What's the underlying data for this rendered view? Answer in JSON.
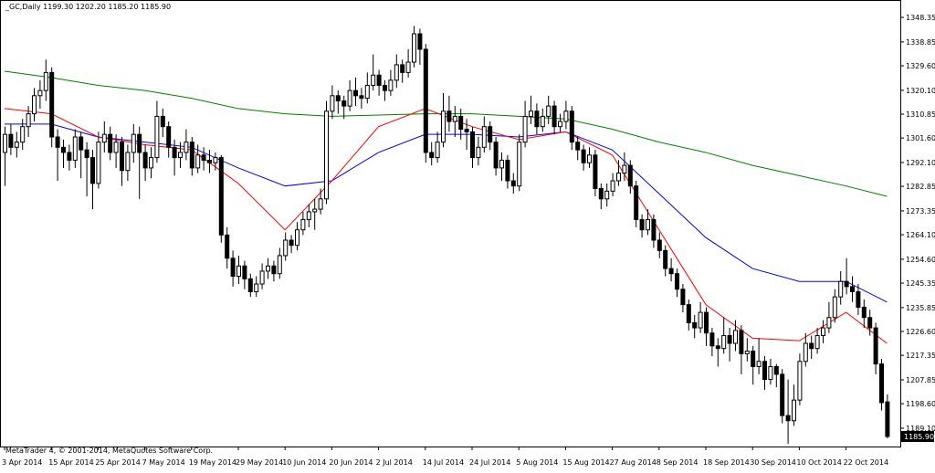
{
  "chart_data": {
    "type": "candlestick",
    "title": "_GC,Daily  1199.30 1202.20 1185.20 1185.90",
    "footer": "MetaTrader 4, © 2001-2014, MetaQuotes Software Corp.",
    "price_label": "1185.90",
    "ylim": [
      1182.0,
      1355.1
    ],
    "yticks": [
      1348.35,
      1338.85,
      {
        "value": 1329.6,
        "label": "1329.60"
      },
      {
        "value": 1320.1,
        "label": "1320.10"
      },
      1310.85,
      {
        "value": 1301.6,
        "label": "1301.60"
      },
      {
        "value": 1292.1,
        "label": "1292.10"
      },
      1282.85,
      1273.35,
      {
        "value": 1264.1,
        "label": "1264.10"
      },
      {
        "value": 1254.6,
        "label": "1254.60"
      },
      1245.35,
      1235.85,
      {
        "value": 1226.6,
        "label": "1226.60"
      },
      1217.35,
      1207.85,
      {
        "value": 1198.6,
        "label": "1198.60"
      },
      {
        "value": 1189.1,
        "label": "1189.10"
      }
    ],
    "categories": [
      "3 Apr 2014",
      null,
      null,
      null,
      null,
      null,
      null,
      null,
      "15 Apr 2014",
      null,
      null,
      null,
      null,
      null,
      null,
      null,
      "25 Apr 2014",
      null,
      null,
      null,
      null,
      null,
      null,
      null,
      "7 May 2014",
      null,
      null,
      null,
      null,
      null,
      null,
      null,
      "19 May 2014",
      null,
      null,
      null,
      null,
      null,
      null,
      null,
      "29 May 2014",
      null,
      null,
      null,
      null,
      null,
      null,
      null,
      "10 Jun 2014",
      null,
      null,
      null,
      null,
      null,
      null,
      null,
      "20 Jun 2014",
      null,
      null,
      null,
      null,
      null,
      null,
      null,
      "2 Jul 2014",
      null,
      null,
      null,
      null,
      null,
      null,
      null,
      "14 Jul 2014",
      null,
      null,
      null,
      null,
      null,
      null,
      null,
      "24 Jul 2014",
      null,
      null,
      null,
      null,
      null,
      null,
      null,
      "5 Aug 2014",
      null,
      null,
      null,
      null,
      null,
      null,
      null,
      "15 Aug 2014",
      null,
      null,
      null,
      null,
      null,
      null,
      null,
      "27 Aug 2014",
      null,
      null,
      null,
      null,
      null,
      null,
      null,
      "8 Sep 2014",
      null,
      null,
      null,
      null,
      null,
      null,
      null,
      "18 Sep 2014",
      null,
      null,
      null,
      null,
      null,
      null,
      null,
      "30 Sep 2014",
      null,
      null,
      null,
      null,
      null,
      null,
      null,
      "10 Oct 2014",
      null,
      null,
      null,
      null,
      null,
      null,
      null,
      "22 Oct 2014",
      null,
      null,
      null,
      null,
      null,
      null,
      null
    ],
    "ohlc": [
      [
        1296,
        1306,
        1283,
        1303
      ],
      [
        1303,
        1307,
        1295,
        1298
      ],
      [
        1298,
        1304,
        1294,
        1300
      ],
      [
        1300,
        1309,
        1297,
        1306
      ],
      [
        1306,
        1314,
        1302,
        1311
      ],
      [
        1311,
        1321,
        1308,
        1318
      ],
      [
        1318,
        1324,
        1313,
        1320
      ],
      [
        1320,
        1332,
        1316,
        1327
      ],
      [
        1327,
        1329,
        1298,
        1302
      ],
      [
        1302,
        1305,
        1285,
        1298
      ],
      [
        1298,
        1301,
        1290,
        1296
      ],
      [
        1296,
        1299,
        1289,
        1293
      ],
      [
        1293,
        1305,
        1290,
        1302
      ],
      [
        1302,
        1304,
        1286,
        1297
      ],
      [
        1297,
        1300,
        1279,
        1294
      ],
      [
        1294,
        1297,
        1274,
        1284
      ],
      [
        1284,
        1304,
        1282,
        1300
      ],
      [
        1300,
        1308,
        1296,
        1303
      ],
      [
        1303,
        1306,
        1293,
        1296
      ],
      [
        1296,
        1303,
        1290,
        1300
      ],
      [
        1300,
        1302,
        1283,
        1289
      ],
      [
        1289,
        1299,
        1285,
        1296
      ],
      [
        1296,
        1307,
        1292,
        1303
      ],
      [
        1303,
        1306,
        1278,
        1296
      ],
      [
        1296,
        1299,
        1285,
        1290
      ],
      [
        1290,
        1298,
        1286,
        1294
      ],
      [
        1294,
        1316,
        1292,
        1310
      ],
      [
        1310,
        1313,
        1302,
        1306
      ],
      [
        1306,
        1308,
        1294,
        1298
      ],
      [
        1298,
        1301,
        1287,
        1294
      ],
      [
        1294,
        1300,
        1290,
        1296
      ],
      [
        1296,
        1305,
        1293,
        1300
      ],
      [
        1300,
        1302,
        1287,
        1290
      ],
      [
        1290,
        1299,
        1288,
        1295
      ],
      [
        1295,
        1298,
        1289,
        1293
      ],
      [
        1293,
        1297,
        1288,
        1292
      ],
      [
        1292,
        1296,
        1289,
        1294
      ],
      [
        1294,
        1295,
        1261,
        1264
      ],
      [
        1264,
        1267,
        1251,
        1255
      ],
      [
        1255,
        1258,
        1244,
        1248
      ],
      [
        1248,
        1256,
        1245,
        1252
      ],
      [
        1252,
        1254,
        1243,
        1247
      ],
      [
        1247,
        1249,
        1240,
        1242
      ],
      [
        1242,
        1248,
        1240,
        1245
      ],
      [
        1245,
        1253,
        1243,
        1250
      ],
      [
        1250,
        1255,
        1247,
        1252
      ],
      [
        1252,
        1254,
        1246,
        1249
      ],
      [
        1249,
        1259,
        1247,
        1256
      ],
      [
        1256,
        1265,
        1254,
        1262
      ],
      [
        1262,
        1264,
        1257,
        1260
      ],
      [
        1260,
        1269,
        1258,
        1266
      ],
      [
        1266,
        1273,
        1264,
        1270
      ],
      [
        1270,
        1276,
        1267,
        1273
      ],
      [
        1273,
        1278,
        1266,
        1274
      ],
      [
        1274,
        1282,
        1272,
        1278
      ],
      [
        1278,
        1316,
        1276,
        1312
      ],
      [
        1312,
        1322,
        1309,
        1318
      ],
      [
        1318,
        1320,
        1311,
        1316
      ],
      [
        1316,
        1318,
        1309,
        1314
      ],
      [
        1314,
        1324,
        1312,
        1320
      ],
      [
        1320,
        1325,
        1314,
        1318
      ],
      [
        1318,
        1321,
        1313,
        1317
      ],
      [
        1317,
        1327,
        1315,
        1322
      ],
      [
        1322,
        1334,
        1320,
        1326
      ],
      [
        1326,
        1328,
        1318,
        1322
      ],
      [
        1322,
        1324,
        1316,
        1320
      ],
      [
        1320,
        1328,
        1318,
        1324
      ],
      [
        1324,
        1334,
        1321,
        1330
      ],
      [
        1330,
        1332,
        1323,
        1327
      ],
      [
        1327,
        1336,
        1325,
        1331
      ],
      [
        1331,
        1345,
        1329,
        1342
      ],
      [
        1342,
        1344,
        1330,
        1336
      ],
      [
        1336,
        1338,
        1292,
        1296
      ],
      [
        1296,
        1300,
        1291,
        1294
      ],
      [
        1294,
        1304,
        1292,
        1300
      ],
      [
        1300,
        1319,
        1298,
        1312
      ],
      [
        1312,
        1318,
        1304,
        1308
      ],
      [
        1308,
        1314,
        1302,
        1310
      ],
      [
        1310,
        1313,
        1301,
        1305
      ],
      [
        1305,
        1309,
        1297,
        1304
      ],
      [
        1304,
        1306,
        1290,
        1294
      ],
      [
        1294,
        1302,
        1291,
        1298
      ],
      [
        1298,
        1310,
        1296,
        1306
      ],
      [
        1306,
        1308,
        1297,
        1300
      ],
      [
        1300,
        1302,
        1287,
        1290
      ],
      [
        1290,
        1296,
        1285,
        1293
      ],
      [
        1293,
        1295,
        1282,
        1285
      ],
      [
        1285,
        1288,
        1280,
        1283
      ],
      [
        1283,
        1303,
        1281,
        1300
      ],
      [
        1300,
        1316,
        1298,
        1310
      ],
      [
        1310,
        1318,
        1307,
        1312
      ],
      [
        1312,
        1315,
        1303,
        1306
      ],
      [
        1306,
        1313,
        1304,
        1310
      ],
      [
        1310,
        1318,
        1307,
        1314
      ],
      [
        1314,
        1316,
        1303,
        1306
      ],
      [
        1306,
        1311,
        1304,
        1308
      ],
      [
        1308,
        1316,
        1305,
        1312
      ],
      [
        1312,
        1314,
        1297,
        1300
      ],
      [
        1300,
        1302,
        1293,
        1297
      ],
      [
        1297,
        1299,
        1289,
        1292
      ],
      [
        1292,
        1298,
        1290,
        1295
      ],
      [
        1295,
        1297,
        1279,
        1282
      ],
      [
        1282,
        1284,
        1274,
        1278
      ],
      [
        1278,
        1284,
        1275,
        1281
      ],
      [
        1281,
        1288,
        1279,
        1285
      ],
      [
        1285,
        1293,
        1283,
        1288
      ],
      [
        1288,
        1296,
        1285,
        1291
      ],
      [
        1291,
        1293,
        1280,
        1283
      ],
      [
        1283,
        1285,
        1267,
        1270
      ],
      [
        1270,
        1272,
        1263,
        1266
      ],
      [
        1266,
        1274,
        1264,
        1270
      ],
      [
        1270,
        1272,
        1259,
        1262
      ],
      [
        1262,
        1265,
        1255,
        1258
      ],
      [
        1258,
        1260,
        1248,
        1251
      ],
      [
        1251,
        1255,
        1246,
        1249
      ],
      [
        1249,
        1251,
        1240,
        1243
      ],
      [
        1243,
        1245,
        1234,
        1237
      ],
      [
        1237,
        1239,
        1227,
        1230
      ],
      [
        1230,
        1233,
        1224,
        1228
      ],
      [
        1228,
        1238,
        1226,
        1234
      ],
      [
        1234,
        1236,
        1221,
        1226
      ],
      [
        1226,
        1228,
        1217,
        1221
      ],
      [
        1221,
        1224,
        1213,
        1220
      ],
      [
        1220,
        1232,
        1218,
        1225
      ],
      [
        1225,
        1228,
        1215,
        1222
      ],
      [
        1222,
        1231,
        1219,
        1227
      ],
      [
        1227,
        1229,
        1210,
        1218
      ],
      [
        1218,
        1224,
        1215,
        1219
      ],
      [
        1219,
        1221,
        1206,
        1213
      ],
      [
        1213,
        1224,
        1210,
        1215
      ],
      [
        1215,
        1217,
        1204,
        1208
      ],
      [
        1208,
        1216,
        1206,
        1213
      ],
      [
        1213,
        1214,
        1205,
        1210
      ],
      [
        1210,
        1212,
        1191,
        1194
      ],
      [
        1194,
        1208,
        1183,
        1192
      ],
      [
        1192,
        1206,
        1190,
        1200
      ],
      [
        1200,
        1218,
        1198,
        1215
      ],
      [
        1215,
        1226,
        1213,
        1222
      ],
      [
        1222,
        1225,
        1216,
        1220
      ],
      [
        1220,
        1228,
        1218,
        1225
      ],
      [
        1225,
        1231,
        1222,
        1228
      ],
      [
        1228,
        1238,
        1226,
        1232
      ],
      [
        1232,
        1243,
        1230,
        1240
      ],
      [
        1240,
        1250,
        1237,
        1246
      ],
      [
        1246,
        1255,
        1241,
        1244
      ],
      [
        1244,
        1248,
        1238,
        1242
      ],
      [
        1242,
        1245,
        1233,
        1236
      ],
      [
        1236,
        1239,
        1228,
        1232
      ],
      [
        1232,
        1235,
        1225,
        1228
      ],
      [
        1228,
        1230,
        1210,
        1214
      ],
      [
        1214,
        1216,
        1196,
        1199
      ],
      [
        1199.3,
        1202.2,
        1185.2,
        1185.9
      ]
    ],
    "ma_lines": [
      {
        "color": "#008000",
        "x": [
          0,
          8,
          16,
          24,
          32,
          40,
          48,
          56,
          64,
          72,
          80,
          88,
          96,
          104,
          112,
          120,
          128,
          136,
          144,
          151
        ],
        "values": [
          1327.5,
          1325,
          1322,
          1320,
          1317,
          1313,
          1311,
          1310,
          1310.5,
          1311,
          1311,
          1310,
          1309,
          1305,
          1300,
          1296,
          1291,
          1287,
          1283,
          1279
        ]
      },
      {
        "color": "#0000ff",
        "x": [
          0,
          8,
          16,
          24,
          32,
          40,
          48,
          56,
          64,
          72,
          80,
          88,
          96,
          104,
          112,
          120,
          128,
          136,
          144,
          151
        ],
        "values": [
          1307,
          1307,
          1302,
          1300,
          1298,
          1290,
          1283,
          1285,
          1296,
          1303,
          1303,
          1302,
          1304,
          1297,
          1280,
          1263,
          1251,
          1246,
          1246,
          1238
        ]
      },
      {
        "color": "#ff0000",
        "x": [
          0,
          8,
          16,
          24,
          32,
          40,
          48,
          56,
          64,
          72,
          80,
          88,
          96,
          104,
          112,
          120,
          128,
          136,
          144,
          151
        ],
        "values": [
          1313,
          1311,
          1302,
          1299,
          1297,
          1284,
          1266,
          1285,
          1306,
          1313,
          1306,
          1301,
          1304,
          1295,
          1266,
          1237,
          1224,
          1223,
          1234,
          1222
        ]
      }
    ]
  }
}
